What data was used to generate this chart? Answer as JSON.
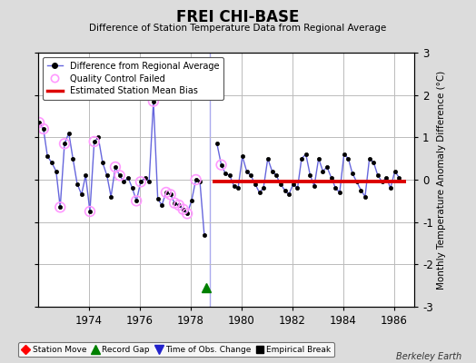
{
  "title": "FREI CHI-BASE",
  "subtitle": "Difference of Station Temperature Data from Regional Average",
  "ylabel": "Monthly Temperature Anomaly Difference (°C)",
  "xlabel_years": [
    1974,
    1976,
    1978,
    1980,
    1982,
    1984,
    1986
  ],
  "ylim": [
    -3,
    3
  ],
  "yticks": [
    -3,
    -2,
    -1,
    0,
    1,
    2,
    3
  ],
  "xlim": [
    1972.0,
    1986.8
  ],
  "background_color": "#dcdcdc",
  "plot_bg_color": "#ffffff",
  "grid_color": "#bbbbbb",
  "watermark": "Berkeley Earth",
  "bias_line_value": -0.05,
  "bias_line_start": 1978.85,
  "bias_line_end": 1986.5,
  "record_gap_x": 1978.62,
  "record_gap_y": -2.55,
  "gap_line_x": 1978.75,
  "data_x": [
    1972.04,
    1972.21,
    1972.37,
    1972.54,
    1972.71,
    1972.87,
    1973.04,
    1973.21,
    1973.37,
    1973.54,
    1973.71,
    1973.87,
    1974.04,
    1974.21,
    1974.37,
    1974.54,
    1974.71,
    1974.87,
    1975.04,
    1975.21,
    1975.37,
    1975.54,
    1975.71,
    1975.87,
    1976.04,
    1976.21,
    1976.37,
    1976.54,
    1976.71,
    1976.87,
    1977.04,
    1977.21,
    1977.37,
    1977.54,
    1977.71,
    1977.87,
    1978.04,
    1978.21,
    1978.37,
    1978.54,
    1979.04,
    1979.21,
    1979.37,
    1979.54,
    1979.71,
    1979.87,
    1980.04,
    1980.21,
    1980.37,
    1980.54,
    1980.71,
    1980.87,
    1981.04,
    1981.21,
    1981.37,
    1981.54,
    1981.71,
    1981.87,
    1982.04,
    1982.21,
    1982.37,
    1982.54,
    1982.71,
    1982.87,
    1983.04,
    1983.21,
    1983.37,
    1983.54,
    1983.71,
    1983.87,
    1984.04,
    1984.21,
    1984.37,
    1984.54,
    1984.71,
    1984.87,
    1985.04,
    1985.21,
    1985.37,
    1985.54,
    1985.71,
    1985.87,
    1986.04,
    1986.21
  ],
  "data_y": [
    1.35,
    1.2,
    0.55,
    0.4,
    0.2,
    -0.65,
    0.85,
    1.1,
    0.5,
    -0.1,
    -0.35,
    0.1,
    -0.75,
    0.9,
    1.0,
    0.4,
    0.1,
    -0.4,
    0.3,
    0.1,
    -0.05,
    0.05,
    -0.2,
    -0.5,
    -0.05,
    0.05,
    -0.05,
    1.85,
    -0.45,
    -0.6,
    -0.3,
    -0.35,
    -0.55,
    -0.6,
    -0.7,
    -0.8,
    -0.5,
    0.0,
    -0.05,
    -1.3,
    0.85,
    0.35,
    0.15,
    0.1,
    -0.15,
    -0.2,
    0.55,
    0.2,
    0.1,
    -0.1,
    -0.3,
    -0.2,
    0.5,
    0.2,
    0.1,
    -0.1,
    -0.25,
    -0.35,
    -0.1,
    -0.2,
    0.5,
    0.6,
    0.1,
    -0.15,
    0.5,
    0.2,
    0.3,
    0.05,
    -0.2,
    -0.3,
    0.6,
    0.5,
    0.15,
    -0.05,
    -0.25,
    -0.4,
    0.5,
    0.4,
    0.1,
    -0.05,
    0.05,
    -0.2,
    0.2,
    0.05
  ],
  "qc_failed_x": [
    1972.04,
    1972.21,
    1972.87,
    1973.04,
    1974.04,
    1974.21,
    1975.04,
    1975.21,
    1975.87,
    1976.04,
    1976.54,
    1977.04,
    1977.21,
    1977.37,
    1977.54,
    1977.71,
    1977.87,
    1978.21,
    1979.21
  ],
  "qc_failed_y": [
    1.35,
    1.2,
    -0.65,
    0.85,
    -0.75,
    0.9,
    0.3,
    0.1,
    -0.5,
    -0.05,
    1.85,
    -0.3,
    -0.35,
    -0.55,
    -0.6,
    -0.7,
    -0.8,
    0.0,
    0.35
  ],
  "line_color": "#6666dd",
  "dot_color": "#000000",
  "qc_color": "#ff99ff",
  "bias_color": "#dd0000",
  "gap_line_color": "#aaaaee"
}
